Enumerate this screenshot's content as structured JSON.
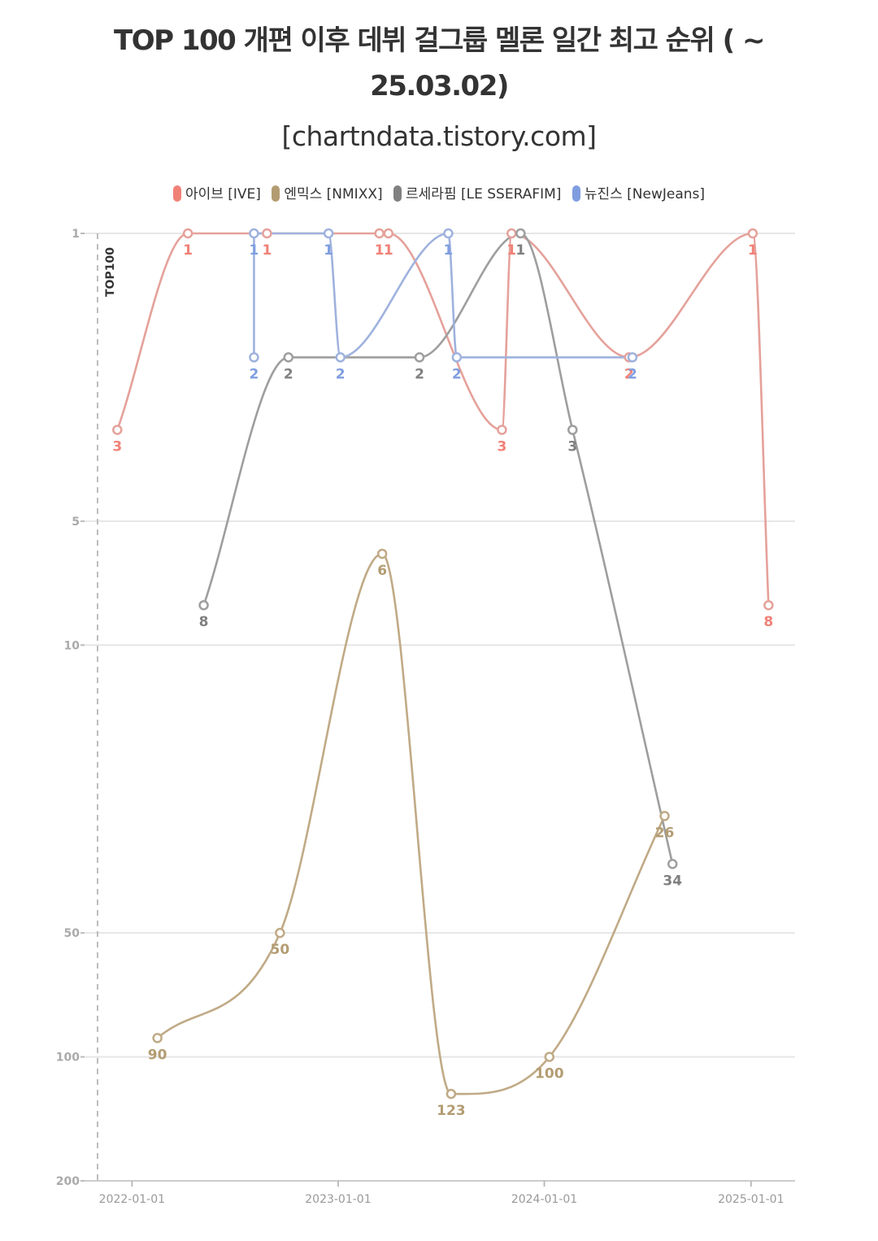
{
  "chart_data": {
    "type": "line",
    "title": "TOP 100 개편 이후 데뷔 걸그룹 멜론 일간 최고 순위 ( ~ 25.03.02)",
    "subtitle": "[chartndata.tistory.com]",
    "legend_position": "top-center",
    "grid": true,
    "y_scale": "log-reversed",
    "ylim": [
      1,
      200
    ],
    "y_ticks": [
      {
        "value": 1,
        "label": "1"
      },
      {
        "value": 5,
        "label": "5"
      },
      {
        "value": 10,
        "label": "10"
      },
      {
        "value": 50,
        "label": "50"
      },
      {
        "value": 100,
        "label": "100"
      },
      {
        "value": 200,
        "label": "200"
      }
    ],
    "xlim": [
      "2021-10-09",
      "2025-03-20"
    ],
    "x_ticks": [
      {
        "value": "2022-01-01",
        "label": "2022-01-01"
      },
      {
        "value": "2023-01-01",
        "label": "2023-01-01"
      },
      {
        "value": "2024-01-01",
        "label": "2024-01-01"
      },
      {
        "value": "2025-01-01",
        "label": "2025-01-01"
      }
    ],
    "annotation": {
      "value": "2021-11-01",
      "label": "TOP100"
    },
    "series": [
      {
        "name": "아이브 [IVE]",
        "color": "#f08177",
        "line_color": "#e5a19a",
        "points": [
          {
            "x": "2021-12-06",
            "y": 3
          },
          {
            "x": "2022-04-10",
            "y": 1
          },
          {
            "x": "2022-08-28",
            "y": 1
          },
          {
            "x": "2023-03-15",
            "y": 1
          },
          {
            "x": "2023-03-31",
            "y": 1
          },
          {
            "x": "2023-10-18",
            "y": 3
          },
          {
            "x": "2023-11-04",
            "y": 1
          },
          {
            "x": "2024-05-30",
            "y": 2
          },
          {
            "x": "2025-01-04",
            "y": 1
          },
          {
            "x": "2025-02-01",
            "y": 8
          }
        ]
      },
      {
        "name": "엔믹스 [NMIXX]",
        "color": "#b39c72",
        "line_color": "#c0aa86",
        "points": [
          {
            "x": "2022-02-15",
            "y": 90
          },
          {
            "x": "2022-09-20",
            "y": 50
          },
          {
            "x": "2023-03-20",
            "y": 6
          },
          {
            "x": "2023-07-20",
            "y": 123
          },
          {
            "x": "2024-01-10",
            "y": 100
          },
          {
            "x": "2024-08-01",
            "y": 26
          }
        ]
      },
      {
        "name": "르세라핌 [LE SSERAFIM]",
        "color": "#808080",
        "line_color": "#9e9e9e",
        "points": [
          {
            "x": "2022-05-08",
            "y": 8
          },
          {
            "x": "2022-10-05",
            "y": 2
          },
          {
            "x": "2023-05-25",
            "y": 2
          },
          {
            "x": "2023-11-20",
            "y": 1
          },
          {
            "x": "2024-02-20",
            "y": 3
          },
          {
            "x": "2024-08-15",
            "y": 34
          }
        ]
      },
      {
        "name": "뉴진스 [NewJeans]",
        "color": "#7f9ee0",
        "line_color": "#9fb2de",
        "points": [
          {
            "x": "2022-08-05",
            "y": 2
          },
          {
            "x": "2022-08-05",
            "y": 1
          },
          {
            "x": "2022-12-15",
            "y": 1
          },
          {
            "x": "2023-01-05",
            "y": 2
          },
          {
            "x": "2023-07-15",
            "y": 1
          },
          {
            "x": "2023-07-30",
            "y": 2
          },
          {
            "x": "2024-06-05",
            "y": 2
          }
        ]
      }
    ]
  }
}
